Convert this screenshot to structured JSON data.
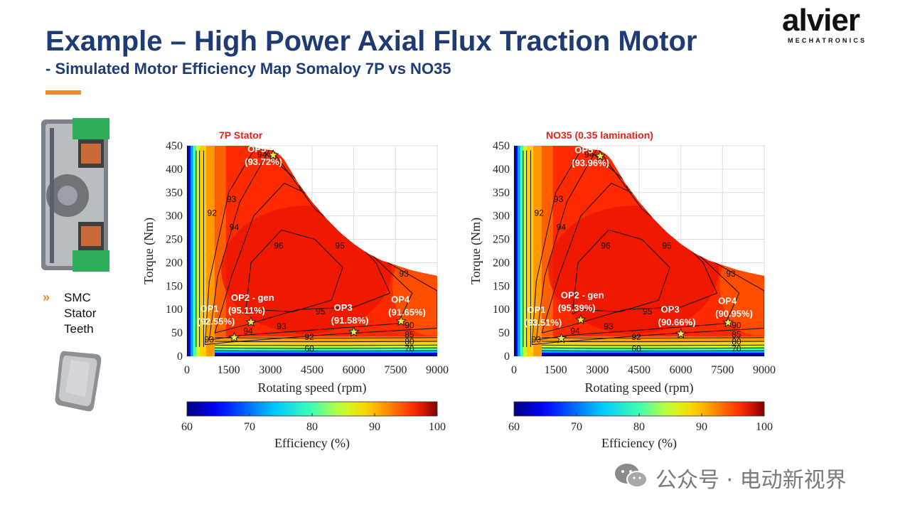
{
  "slide": {
    "title": "Example – High Power Axial Flux Traction Motor",
    "subtitle": "- Simulated Motor Efficiency Map Somaloy 7P vs NO35",
    "logo_word": "alvier",
    "logo_sub": "MECHATRONICS",
    "bullet_marker": "»",
    "bullet_text": "SMC Stator Teeth",
    "watermark": "公众号 · 电动新视界"
  },
  "colors": {
    "title": "#1f3b73",
    "accent": "#f08a2c",
    "chart_title": "#e8221b"
  },
  "chart_data": [
    {
      "type": "heatmap",
      "title": "7P Stator",
      "xlabel": "Rotating speed (rpm)",
      "ylabel": "Torque (Nm)",
      "xlim": [
        0,
        9000
      ],
      "ylim": [
        0,
        450
      ],
      "xticks": [
        0,
        1500,
        3000,
        4500,
        6000,
        7500,
        9000
      ],
      "yticks": [
        0,
        50,
        100,
        150,
        200,
        250,
        300,
        350,
        400,
        450
      ],
      "colorbar": {
        "label": "Efficiency (%)",
        "range": [
          60,
          100
        ],
        "ticks": [
          60,
          70,
          80,
          90,
          100
        ]
      },
      "operating_points": [
        {
          "name": "OP1",
          "label": "(92.55%)",
          "speed": 1700,
          "torque": 40,
          "efficiency": 92.55
        },
        {
          "name": "OP2 - gen",
          "label": "(95.11%)",
          "speed": 2300,
          "torque": 73,
          "efficiency": 95.11
        },
        {
          "name": "OP3",
          "label": "(91.58%)",
          "speed": 6000,
          "torque": 52,
          "efficiency": 91.58
        },
        {
          "name": "OP4",
          "label": "(91.65%)",
          "speed": 7700,
          "torque": 75,
          "efficiency": 91.65
        },
        {
          "name": "OP5",
          "label": "(93.72%)",
          "speed": 3100,
          "torque": 430,
          "efficiency": 93.72
        }
      ],
      "contour_labels": [
        "94",
        "95",
        "96",
        "93",
        "92",
        "90",
        "85",
        "80",
        "70",
        "60"
      ]
    },
    {
      "type": "heatmap",
      "title": "NO35 (0.35 lamination)",
      "xlabel": "Rotating speed (rpm)",
      "ylabel": "Torque (Nm)",
      "xlim": [
        0,
        9000
      ],
      "ylim": [
        0,
        450
      ],
      "xticks": [
        0,
        1500,
        3000,
        4500,
        6000,
        7500,
        9000
      ],
      "yticks": [
        0,
        50,
        100,
        150,
        200,
        250,
        300,
        350,
        400,
        450
      ],
      "colorbar": {
        "label": "Efficiency (%)",
        "range": [
          60,
          100
        ],
        "ticks": [
          60,
          70,
          80,
          90,
          100
        ]
      },
      "operating_points": [
        {
          "name": "OP1",
          "label": "(93.51%)",
          "speed": 1700,
          "torque": 38,
          "efficiency": 93.51
        },
        {
          "name": "OP2 - gen",
          "label": "(95.39%)",
          "speed": 2400,
          "torque": 78,
          "efficiency": 95.39
        },
        {
          "name": "OP3",
          "label": "(90.66%)",
          "speed": 6000,
          "torque": 48,
          "efficiency": 90.66
        },
        {
          "name": "OP4",
          "label": "(90.95%)",
          "speed": 7700,
          "torque": 72,
          "efficiency": 90.95
        },
        {
          "name": "OP5",
          "label": "(93.96%)",
          "speed": 3100,
          "torque": 428,
          "efficiency": 93.96
        }
      ],
      "contour_labels": [
        "94",
        "95",
        "96",
        "93",
        "92",
        "90",
        "85",
        "80",
        "70",
        "60"
      ]
    }
  ]
}
